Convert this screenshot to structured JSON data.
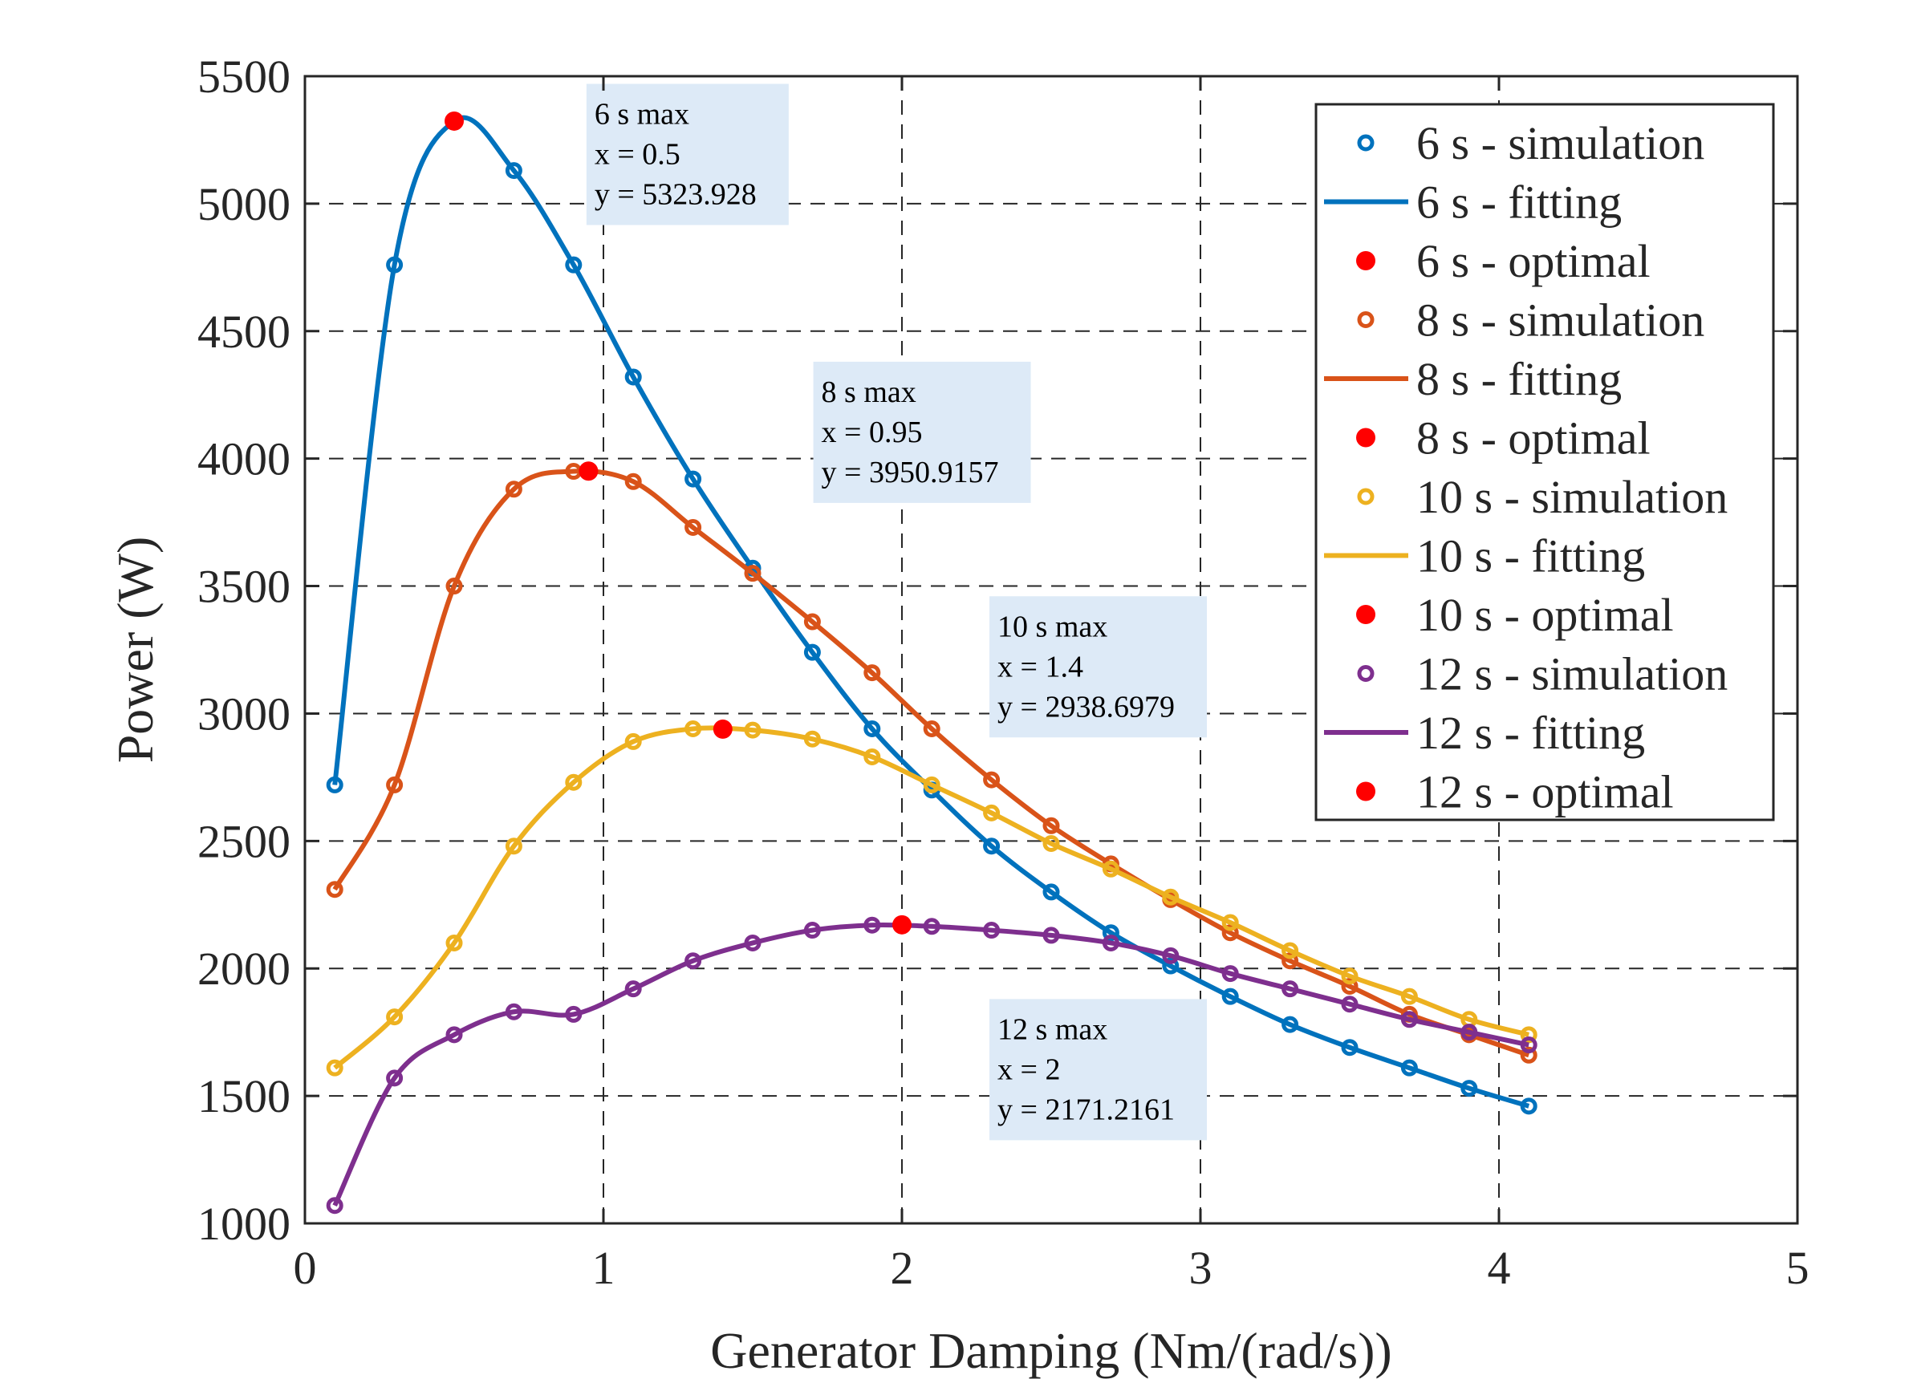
{
  "chart_data": {
    "type": "line",
    "title": "",
    "xlabel": "Generator Damping (Nm/(rad/s))",
    "ylabel": "Power (W)",
    "xlim": [
      0,
      5
    ],
    "ylim": [
      1000,
      5500
    ],
    "xticks": [
      0,
      1,
      2,
      3,
      4,
      5
    ],
    "yticks": [
      1000,
      1500,
      2000,
      2500,
      3000,
      3500,
      4000,
      4500,
      5000,
      5500
    ],
    "grid": true,
    "legend_position": "top-right",
    "x": [
      0.1,
      0.3,
      0.5,
      0.7,
      0.9,
      1.1,
      1.3,
      1.5,
      1.7,
      1.9,
      2.1,
      2.3,
      2.5,
      2.7,
      2.9,
      3.1,
      3.3,
      3.5,
      3.7,
      3.9,
      4.1
    ],
    "series": [
      {
        "name": "6 s",
        "color": "#0072BD",
        "simulation_label": "6 s - simulation",
        "fitting_label": "6 s - fitting",
        "optimal_label": "6 s - optimal",
        "values": [
          2720,
          4760,
          5324,
          5130,
          4760,
          4320,
          3920,
          3570,
          3240,
          2940,
          2700,
          2480,
          2300,
          2140,
          2010,
          1890,
          1780,
          1690,
          1610,
          1530,
          1460
        ],
        "optimal": {
          "x": 0.5,
          "y": 5323.928
        }
      },
      {
        "name": "8 s",
        "color": "#D95319",
        "simulation_label": "8 s - simulation",
        "fitting_label": "8 s - fitting",
        "optimal_label": "8 s - optimal",
        "values": [
          2310,
          2720,
          3500,
          3880,
          3950,
          3910,
          3730,
          3550,
          3360,
          3160,
          2940,
          2740,
          2560,
          2410,
          2270,
          2140,
          2030,
          1930,
          1820,
          1740,
          1660
        ],
        "optimal": {
          "x": 0.95,
          "y": 3950.9157
        }
      },
      {
        "name": "10 s",
        "color": "#EDB120",
        "simulation_label": "10 s - simulation",
        "fitting_label": "10 s - fitting",
        "optimal_label": "10 s - optimal",
        "values": [
          1610,
          1810,
          2100,
          2480,
          2730,
          2890,
          2940,
          2935,
          2900,
          2830,
          2720,
          2610,
          2490,
          2390,
          2280,
          2180,
          2070,
          1970,
          1890,
          1800,
          1740
        ],
        "optimal": {
          "x": 1.4,
          "y": 2938.6979
        }
      },
      {
        "name": "12 s",
        "color": "#7E2F8E",
        "simulation_label": "12 s - simulation",
        "fitting_label": "12 s - fitting",
        "optimal_label": "12 s - optimal",
        "values": [
          1070,
          1570,
          1740,
          1830,
          1820,
          1920,
          2030,
          2100,
          2150,
          2170,
          2165,
          2150,
          2130,
          2100,
          2050,
          1980,
          1920,
          1860,
          1800,
          1750,
          1700
        ],
        "optimal": {
          "x": 2.0,
          "y": 2171.2161
        }
      }
    ],
    "optimal_color": "#FF0000",
    "annotations": [
      {
        "series": "6 s",
        "lines": [
          "6 s max",
          "x = 0.5",
          "y = 5323.928"
        ],
        "anchor_x": 0.97,
        "anchor_y": 5470
      },
      {
        "series": "8 s",
        "lines": [
          "8 s max",
          "x = 0.95",
          "y = 3950.9157"
        ],
        "anchor_x": 1.73,
        "anchor_y": 4380
      },
      {
        "series": "10 s",
        "lines": [
          "10 s max",
          "x = 1.4",
          "y = 2938.6979"
        ],
        "anchor_x": 2.32,
        "anchor_y": 3460
      },
      {
        "series": "12 s",
        "lines": [
          "12 s max",
          "x = 2",
          "y = 2171.2161"
        ],
        "anchor_x": 2.32,
        "anchor_y": 1880
      }
    ]
  }
}
